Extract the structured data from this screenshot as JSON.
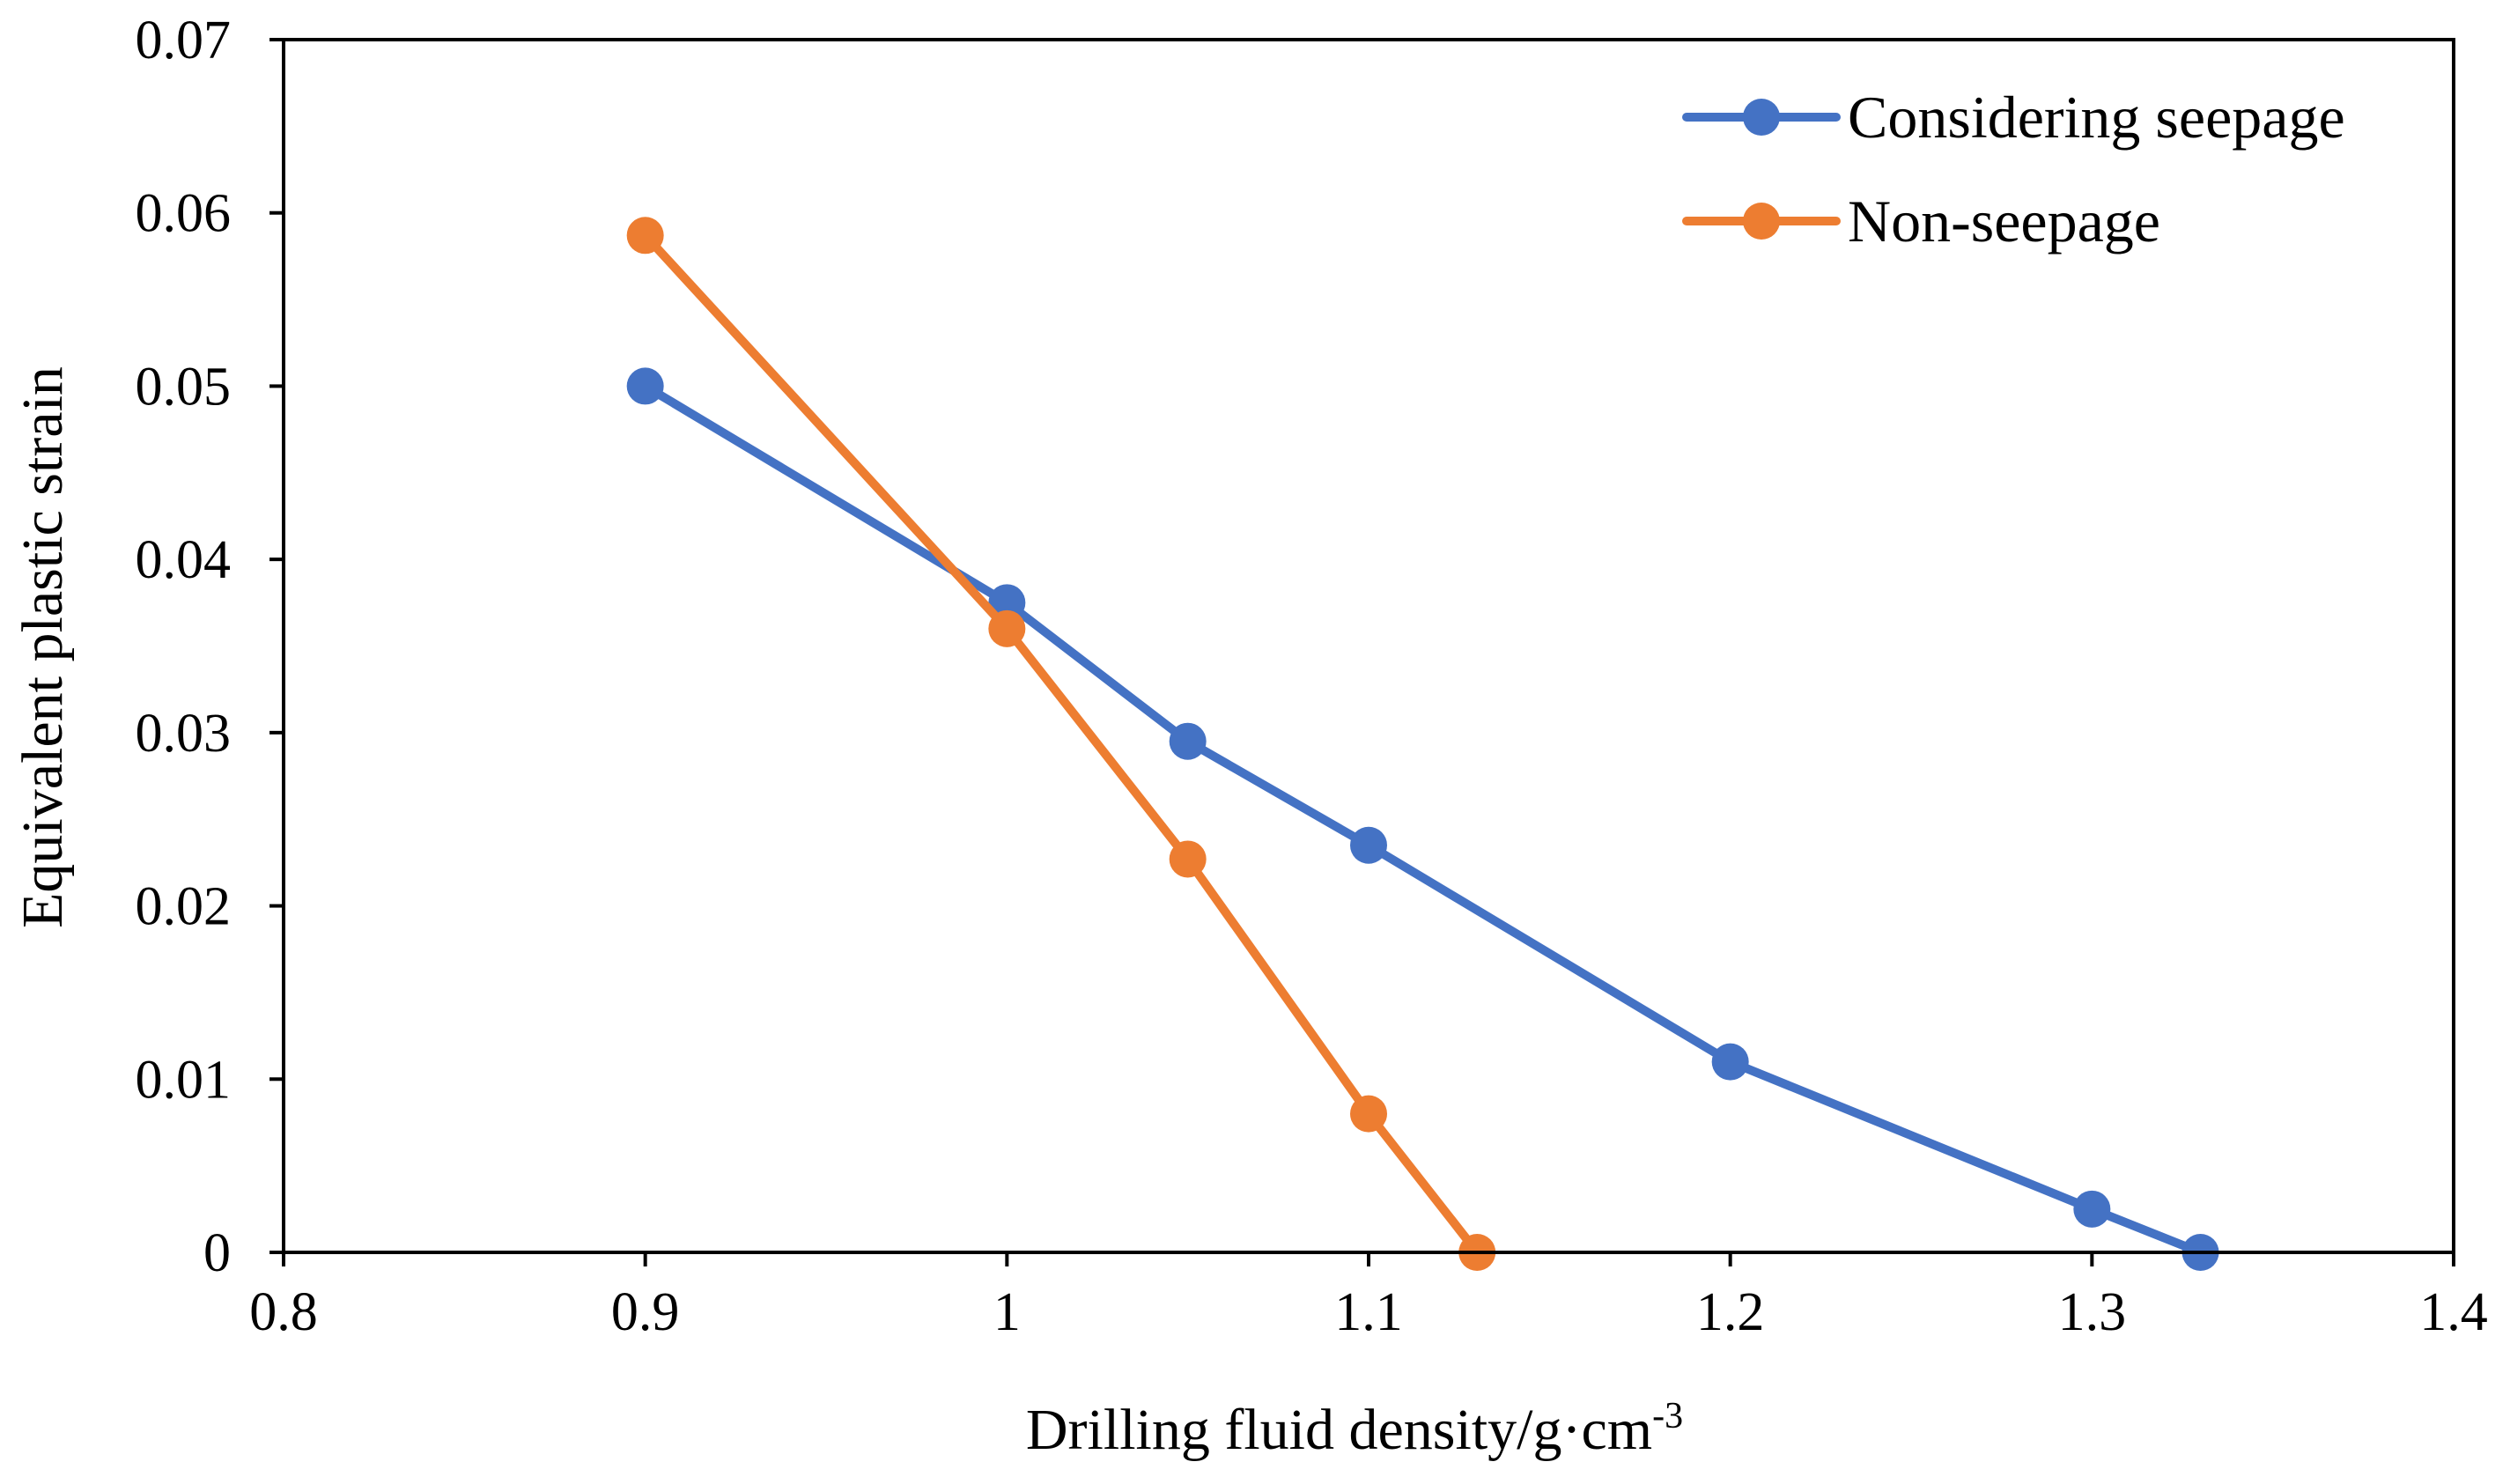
{
  "chart_data": {
    "type": "line",
    "title": "",
    "xlabel": "Drilling fluid density/g·cm",
    "xlabel_superscript": "-3",
    "ylabel": "Equivalent plastic strain",
    "xlim": [
      0.8,
      1.4
    ],
    "ylim": [
      0,
      0.07
    ],
    "xticks": [
      0.8,
      0.9,
      1.0,
      1.1,
      1.2,
      1.3,
      1.4
    ],
    "xtick_labels": [
      "0.8",
      "0.9",
      "1",
      "1.1",
      "1.2",
      "1.3",
      "1.4"
    ],
    "yticks": [
      0,
      0.01,
      0.02,
      0.03,
      0.04,
      0.05,
      0.06,
      0.07
    ],
    "ytick_labels": [
      "0",
      "0.01",
      "0.02",
      "0.03",
      "0.04",
      "0.05",
      "0.06",
      "0.07"
    ],
    "grid": false,
    "legend_position": "top-right",
    "series": [
      {
        "name": "Considering seepage",
        "color": "#4472C4",
        "x": [
          0.9,
          1.0,
          1.05,
          1.1,
          1.2,
          1.3,
          1.33
        ],
        "y": [
          0.05,
          0.0375,
          0.0295,
          0.0235,
          0.011,
          0.0025,
          0.0
        ]
      },
      {
        "name": "Non-seepage",
        "color": "#ED7D31",
        "x": [
          0.9,
          1.0,
          1.05,
          1.1,
          1.13
        ],
        "y": [
          0.0587,
          0.036,
          0.0227,
          0.008,
          0.0
        ]
      }
    ]
  }
}
